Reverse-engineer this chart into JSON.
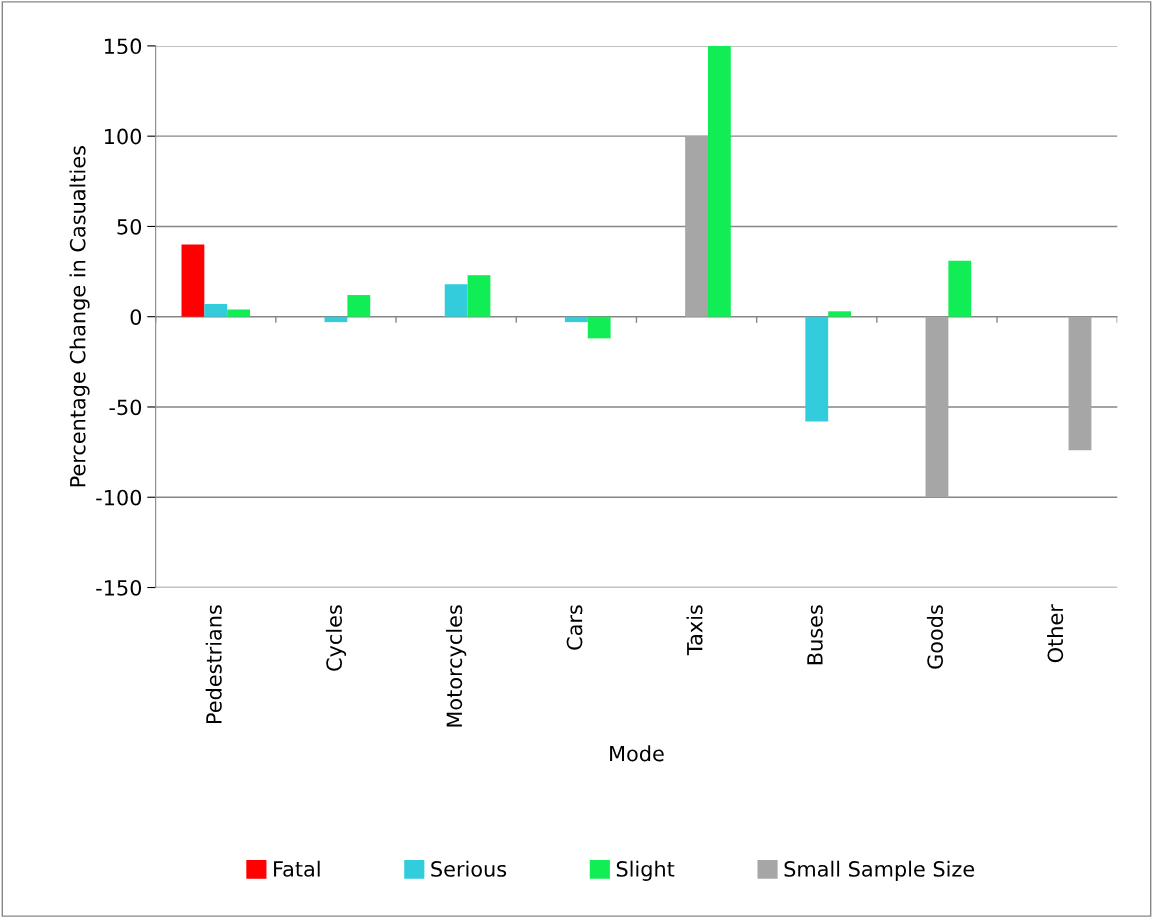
{
  "chart_data": {
    "type": "bar",
    "xlabel": "Mode",
    "ylabel": "Percentage Change in Casualties",
    "categories": [
      "Pedestrians",
      "Cycles",
      "Motorcycles",
      "Cars",
      "Taxis",
      "Buses",
      "Goods",
      "Other"
    ],
    "series": [
      {
        "name": "Fatal",
        "color": "#ff0000",
        "values": [
          40,
          null,
          null,
          null,
          null,
          null,
          null,
          null
        ]
      },
      {
        "name": "Serious",
        "color": "#33ccdd",
        "colors": [
          "#33ccdd",
          "#33ccdd",
          "#33ccdd",
          "#33ccdd",
          "#a6a6a6",
          "#33ccdd",
          "#a6a6a6",
          "#33ccdd"
        ],
        "values": [
          7,
          -3,
          18,
          -3,
          100,
          -58,
          -100,
          null
        ]
      },
      {
        "name": "Slight",
        "color": "#11ee55",
        "colors": [
          "#11ee55",
          "#11ee55",
          "#11ee55",
          "#11ee55",
          "#11ee55",
          "#11ee55",
          "#11ee55",
          "#a6a6a6"
        ],
        "values": [
          4,
          12,
          23,
          -12,
          150,
          3,
          31,
          -74
        ]
      },
      {
        "name": "Small Sample Size",
        "color": "#a6a6a6",
        "values": [
          null,
          null,
          null,
          null,
          null,
          null,
          null,
          null
        ]
      }
    ],
    "ylim": [
      -150,
      150
    ],
    "yticks": [
      -150,
      -100,
      -50,
      0,
      50,
      100,
      150
    ],
    "grid": "y",
    "legend": "bottom"
  }
}
